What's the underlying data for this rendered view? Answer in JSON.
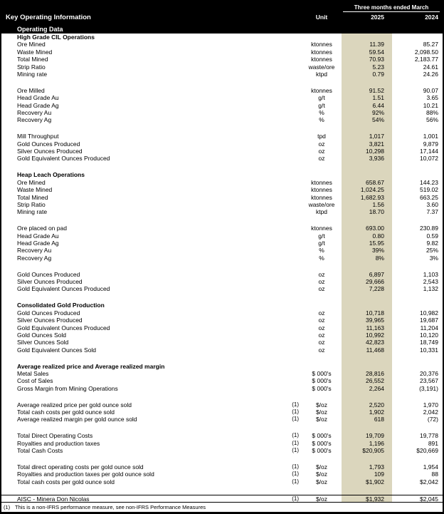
{
  "header": {
    "title": "Key Operating Information",
    "subtitle": "Operating Data",
    "unit_label": "Unit",
    "period_label": "Three months ended March",
    "col_2025": "2025",
    "col_2024": "2024"
  },
  "colors": {
    "header_bg": "#000000",
    "highlight_column": "#dbd6bd"
  },
  "rows": [
    {
      "type": "section",
      "label": "High Grade CIL Operations"
    },
    {
      "type": "data",
      "label": "Ore Mined",
      "unit": "ktonnes",
      "v2025": "11.39",
      "v2024": "85.27"
    },
    {
      "type": "data",
      "label": "Waste Mined",
      "unit": "ktonnes",
      "v2025": "59.54",
      "v2024": "2,098.50"
    },
    {
      "type": "data",
      "label": "Total Mined",
      "unit": "ktonnes",
      "v2025": "70.93",
      "v2024": "2,183.77"
    },
    {
      "type": "data",
      "label": "Strip Ratio",
      "unit": "waste/ore",
      "v2025": "5.23",
      "v2024": "24.61"
    },
    {
      "type": "data",
      "label": "Mining rate",
      "unit": "ktpd",
      "v2025": "0.79",
      "v2024": "24.26"
    },
    {
      "type": "blank"
    },
    {
      "type": "data",
      "label": "Ore Milled",
      "unit": "ktonnes",
      "v2025": "91.52",
      "v2024": "90.07"
    },
    {
      "type": "data",
      "label": "Head Grade Au",
      "unit": "g/t",
      "v2025": "1.51",
      "v2024": "3.65"
    },
    {
      "type": "data",
      "label": "Head Grade Ag",
      "unit": "g/t",
      "v2025": "6.44",
      "v2024": "10.21"
    },
    {
      "type": "data",
      "label": "Recovery Au",
      "unit": "%",
      "v2025": "92%",
      "v2024": "88%"
    },
    {
      "type": "data",
      "label": "Recovery Ag",
      "unit": "%",
      "v2025": "54%",
      "v2024": "56%"
    },
    {
      "type": "blank"
    },
    {
      "type": "data",
      "label": "Mill Throughput",
      "unit": "tpd",
      "v2025": "1,017",
      "v2024": "1,001"
    },
    {
      "type": "data",
      "label": "Gold Ounces Produced",
      "unit": "oz",
      "v2025": "3,821",
      "v2024": "9,879"
    },
    {
      "type": "data",
      "label": "Silver Ounces Produced",
      "unit": "oz",
      "v2025": "10,298",
      "v2024": "17,144"
    },
    {
      "type": "data",
      "label": "Gold Equivalent Ounces Produced",
      "unit": "oz",
      "v2025": "3,936",
      "v2024": "10,072"
    },
    {
      "type": "blank"
    },
    {
      "type": "section",
      "label": "Heap Leach Operations"
    },
    {
      "type": "data",
      "label": "Ore Mined",
      "unit": "ktonnes",
      "v2025": "658.67",
      "v2024": "144.23"
    },
    {
      "type": "data",
      "label": "Waste Mined",
      "unit": "ktonnes",
      "v2025": "1,024.25",
      "v2024": "519.02"
    },
    {
      "type": "data",
      "label": "Total Mined",
      "unit": "ktonnes",
      "v2025": "1,682.93",
      "v2024": "663.25"
    },
    {
      "type": "data",
      "label": "Strip Ratio",
      "unit": "waste/ore",
      "v2025": "1.56",
      "v2024": "3.60"
    },
    {
      "type": "data",
      "label": "Mining rate",
      "unit": "ktpd",
      "v2025": "18.70",
      "v2024": "7.37"
    },
    {
      "type": "blank"
    },
    {
      "type": "data",
      "label": "Ore placed on pad",
      "unit": "ktonnes",
      "v2025": "693.00",
      "v2024": "230.89"
    },
    {
      "type": "data",
      "label": "Head Grade Au",
      "unit": "g/t",
      "v2025": "0.80",
      "v2024": "0.59"
    },
    {
      "type": "data",
      "label": "Head Grade Ag",
      "unit": "g/t",
      "v2025": "15.95",
      "v2024": "9.82"
    },
    {
      "type": "data",
      "label": "Recovery Au",
      "unit": "%",
      "v2025": "39%",
      "v2024": "25%"
    },
    {
      "type": "data",
      "label": "Recovery Ag",
      "unit": "%",
      "v2025": "8%",
      "v2024": "3%"
    },
    {
      "type": "blank"
    },
    {
      "type": "data",
      "label": "Gold Ounces Produced",
      "unit": "oz",
      "v2025": "6,897",
      "v2024": "1,103"
    },
    {
      "type": "data",
      "label": "Silver Ounces Produced",
      "unit": "oz",
      "v2025": "29,666",
      "v2024": "2,543"
    },
    {
      "type": "data",
      "label": "Gold Equivalent Ounces Produced",
      "unit": "oz",
      "v2025": "7,228",
      "v2024": "1,132"
    },
    {
      "type": "blank"
    },
    {
      "type": "section",
      "label": "Consolidated Gold Production"
    },
    {
      "type": "data",
      "label": "Gold Ounces Produced",
      "unit": "oz",
      "v2025": "10,718",
      "v2024": "10,982"
    },
    {
      "type": "data",
      "label": "Silver Ounces Produced",
      "unit": "oz",
      "v2025": "39,965",
      "v2024": "19,687"
    },
    {
      "type": "data",
      "label": "Gold Equivalent Ounces Produced",
      "unit": "oz",
      "v2025": "11,163",
      "v2024": "11,204"
    },
    {
      "type": "data",
      "label": "Gold Ounces Sold",
      "unit": "oz",
      "v2025": "10,992",
      "v2024": "10,120"
    },
    {
      "type": "data",
      "label": "Silver Ounces Sold",
      "unit": "oz",
      "v2025": "42,823",
      "v2024": "18,749"
    },
    {
      "type": "data",
      "label": "Gold Equivalent Ounces Sold",
      "unit": "oz",
      "v2025": "11,468",
      "v2024": "10,331"
    },
    {
      "type": "blank"
    },
    {
      "type": "section",
      "label": "Average realized price and Average realized margin"
    },
    {
      "type": "data",
      "label": "Metal Sales",
      "unit": "$ 000's",
      "v2025": "28,816",
      "v2024": "20,376"
    },
    {
      "type": "data",
      "label": "Cost of Sales",
      "unit": "$ 000's",
      "v2025": "26,552",
      "v2024": "23,567"
    },
    {
      "type": "data",
      "label": "Gross Margin from Mining Operations",
      "unit": "$ 000's",
      "v2025": "2,264",
      "v2024": "(3,191)"
    },
    {
      "type": "blank"
    },
    {
      "type": "data",
      "label": "Average realized price per gold ounce sold",
      "note": "(1)",
      "unit": "$/oz",
      "v2025": "2,520",
      "v2024": "1,970"
    },
    {
      "type": "data",
      "label": "Total cash costs per gold ounce sold",
      "note": "(1)",
      "unit": "$/oz",
      "v2025": "1,902",
      "v2024": "2,042"
    },
    {
      "type": "data",
      "label": "Average realized margin per gold ounce sold",
      "note": "(1)",
      "unit": "$/oz",
      "v2025": "618",
      "v2024": "(72)"
    },
    {
      "type": "blank"
    },
    {
      "type": "data",
      "label": "Total Direct Operating Costs",
      "note": "(1)",
      "unit": "$ 000's",
      "v2025": "19,709",
      "v2024": "19,778"
    },
    {
      "type": "data",
      "label": "Royalties and production taxes",
      "note": "(1)",
      "unit": "$ 000's",
      "v2025": "1,196",
      "v2024": "891"
    },
    {
      "type": "data",
      "label": "Total Cash Costs",
      "note": "(1)",
      "unit": "$ 000's",
      "v2025": "$20,905",
      "v2024": "$20,669"
    },
    {
      "type": "blank"
    },
    {
      "type": "data",
      "label": "Total direct operating costs per gold ounce sold",
      "note": "(1)",
      "unit": "$/oz",
      "v2025": "1,793",
      "v2024": "1,954"
    },
    {
      "type": "data",
      "label": "Royalties and production taxes per gold ounce sold",
      "note": "(1)",
      "unit": "$/oz",
      "v2025": "109",
      "v2024": "88"
    },
    {
      "type": "data",
      "label": "Total cash costs per gold ounce sold",
      "note": "(1)",
      "unit": "$/oz",
      "v2025": "$1,902",
      "v2024": "$2,042"
    },
    {
      "type": "blank"
    },
    {
      "type": "data",
      "label": "AISC - Minera Don Nicolas",
      "note": "(1)",
      "unit": "$/oz",
      "v2025": "$1,932",
      "v2024": "$2,045",
      "emphasis": "top-border"
    }
  ],
  "footnote": {
    "marker": "(1)",
    "text": "This is a non-IFRS performance measure, see non-IFRS Performance Measures"
  }
}
